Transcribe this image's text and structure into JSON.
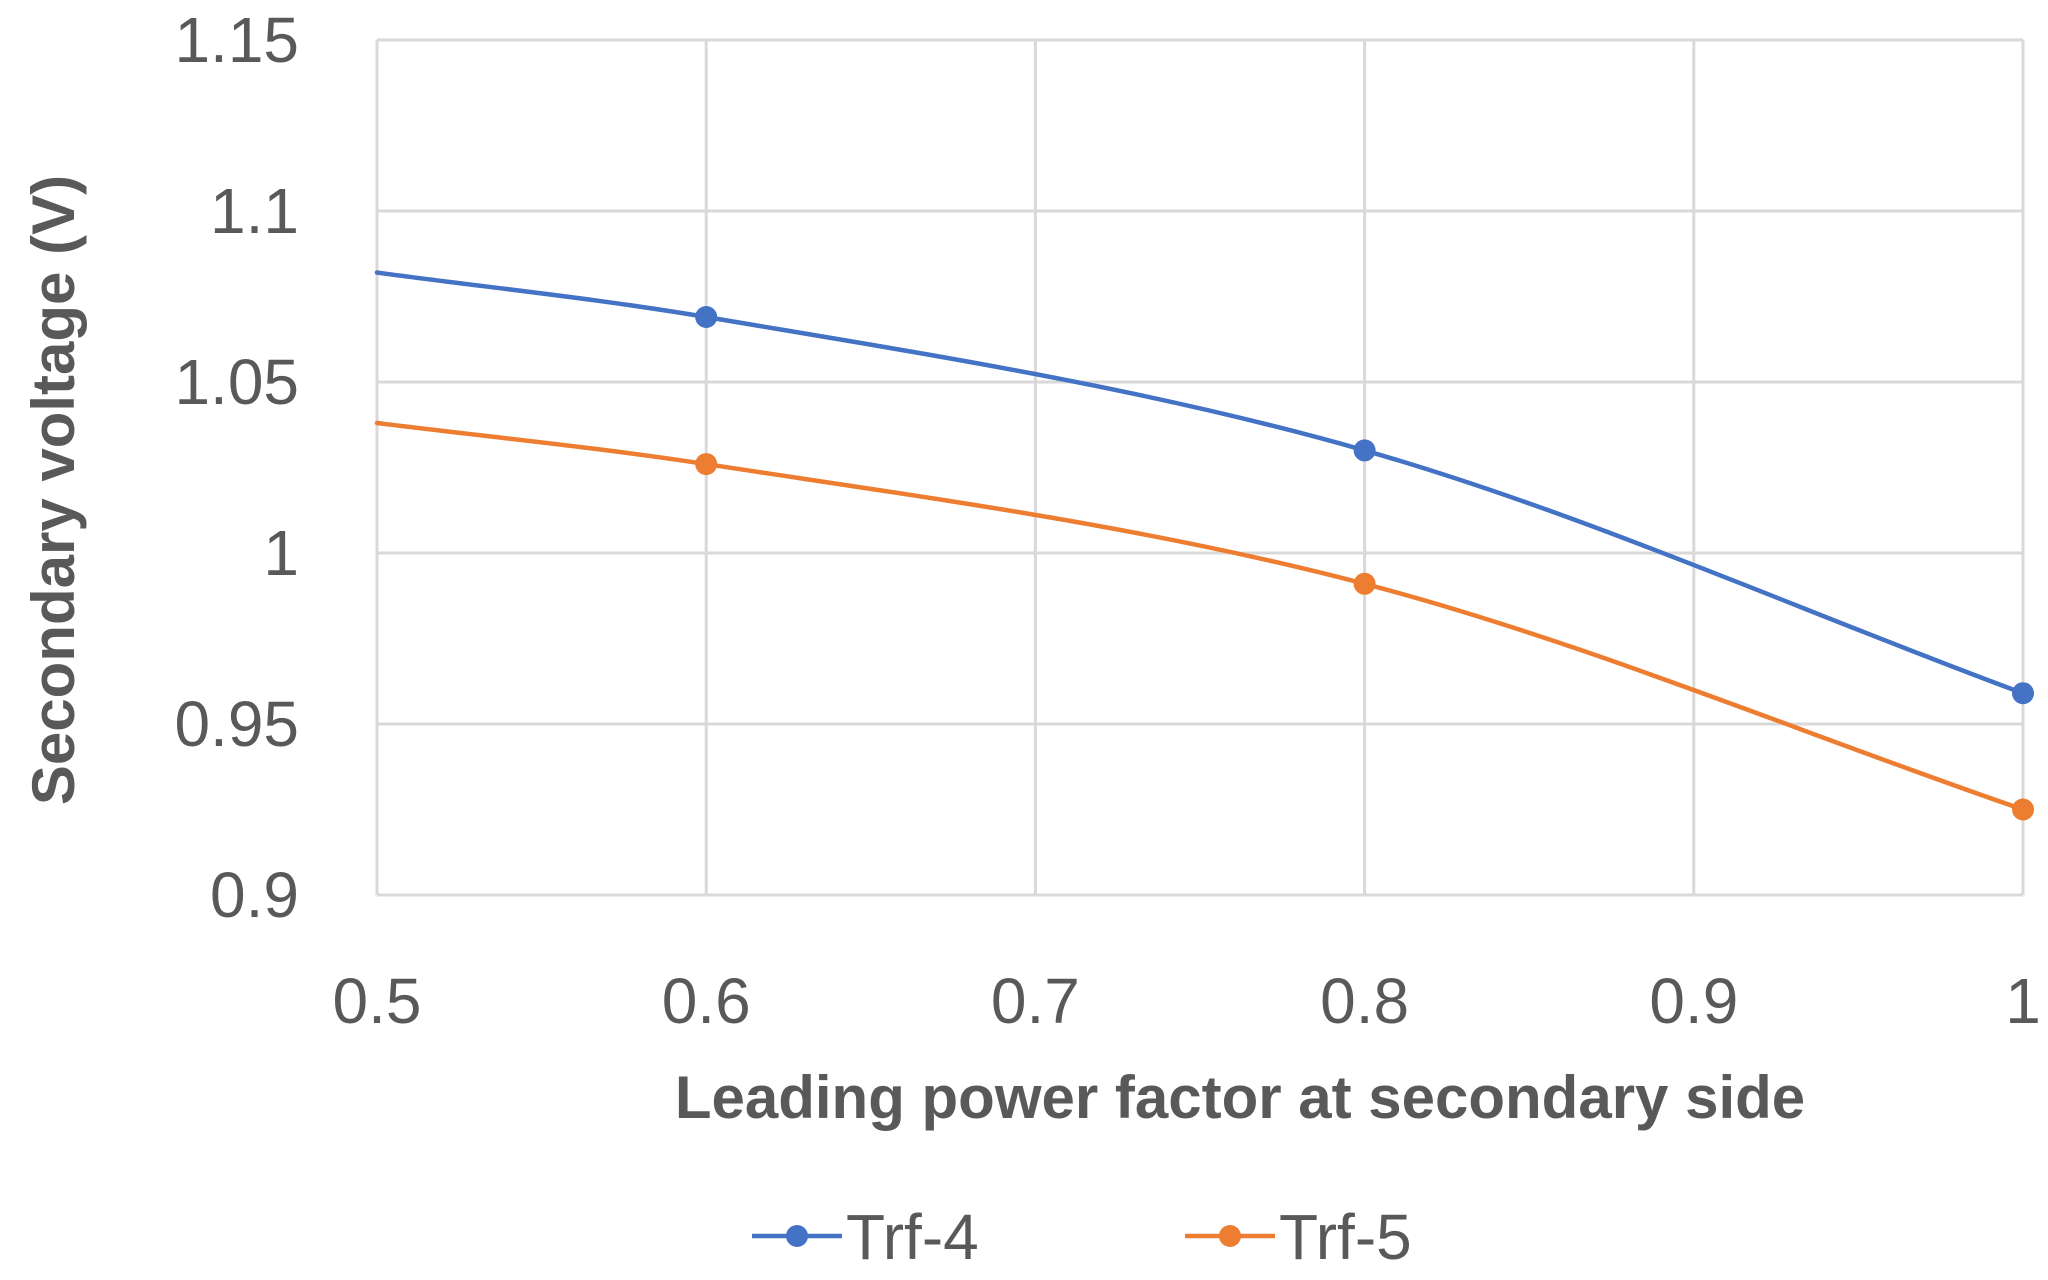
{
  "chart_data": {
    "type": "line",
    "title": "",
    "xlabel": "Leading power factor at secondary side",
    "ylabel": "Secondary voltage (V)",
    "xlim": [
      0.5,
      1
    ],
    "ylim": [
      0.9,
      1.15
    ],
    "xticks": [
      0.5,
      0.6,
      0.7,
      0.8,
      0.9,
      1
    ],
    "xtick_labels": [
      "0.5",
      "0.6",
      "0.7",
      "0.8",
      "0.9",
      "1"
    ],
    "yticks": [
      0.9,
      0.95,
      1,
      1.05,
      1.1,
      1.15
    ],
    "ytick_labels": [
      "0.9",
      "0.95",
      "1",
      "1.05",
      "1.1",
      "1.15"
    ],
    "grid": true,
    "legend_position": "bottom",
    "smooth": true,
    "series": [
      {
        "name": "Trf-4",
        "color": "#4472c4",
        "x": [
          0.5,
          0.6,
          0.8,
          1.0
        ],
        "y": [
          1.082,
          1.069,
          1.03,
          0.959
        ],
        "markers": [
          false,
          true,
          true,
          true
        ]
      },
      {
        "name": "Trf-5",
        "color": "#ed7d31",
        "x": [
          0.5,
          0.6,
          0.8,
          1.0
        ],
        "y": [
          1.038,
          1.026,
          0.991,
          0.925
        ],
        "markers": [
          false,
          true,
          true,
          true
        ]
      }
    ]
  }
}
